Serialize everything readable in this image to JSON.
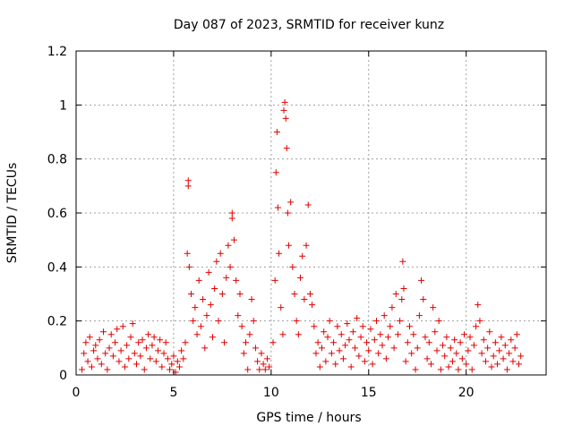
{
  "chart_data": {
    "type": "scatter",
    "title": "Day 087 of 2023, SRMTID for receiver kunz",
    "xlabel": "GPS time / hours",
    "ylabel": "SRMTID / TECUs",
    "xlim": [
      0,
      24.1
    ],
    "ylim": [
      0,
      1.2
    ],
    "xticks": [
      0,
      5,
      10,
      15,
      20
    ],
    "xtick_labels": [
      "0",
      "5",
      "10",
      "15",
      "20"
    ],
    "yticks": [
      0,
      0.2,
      0.4,
      0.6,
      0.8,
      1.0,
      1.2
    ],
    "ytick_labels": [
      "0",
      "0.2",
      "0.4",
      "0.6",
      "0.8",
      "1",
      "1.2"
    ],
    "grid": true,
    "marker": "+",
    "color": "#e00000",
    "series": [
      {
        "name": "SRMTID",
        "points": [
          [
            0.3,
            0.02
          ],
          [
            0.4,
            0.08
          ],
          [
            0.5,
            0.12
          ],
          [
            0.6,
            0.05
          ],
          [
            0.7,
            0.14
          ],
          [
            0.8,
            0.03
          ],
          [
            0.9,
            0.09
          ],
          [
            1.0,
            0.11
          ],
          [
            1.1,
            0.06
          ],
          [
            1.2,
            0.13
          ],
          [
            1.3,
            0.04
          ],
          [
            1.4,
            0.16
          ],
          [
            1.5,
            0.08
          ],
          [
            1.6,
            0.02
          ],
          [
            1.7,
            0.1
          ],
          [
            1.8,
            0.15
          ],
          [
            1.9,
            0.07
          ],
          [
            2.0,
            0.12
          ],
          [
            2.1,
            0.17
          ],
          [
            2.2,
            0.05
          ],
          [
            2.3,
            0.09
          ],
          [
            2.4,
            0.18
          ],
          [
            2.5,
            0.03
          ],
          [
            2.6,
            0.11
          ],
          [
            2.7,
            0.06
          ],
          [
            2.8,
            0.14
          ],
          [
            2.9,
            0.19
          ],
          [
            3.0,
            0.08
          ],
          [
            3.1,
            0.04
          ],
          [
            3.2,
            0.12
          ],
          [
            3.3,
            0.07
          ],
          [
            3.4,
            0.13
          ],
          [
            3.5,
            0.02
          ],
          [
            3.6,
            0.1
          ],
          [
            3.7,
            0.15
          ],
          [
            3.8,
            0.06
          ],
          [
            3.9,
            0.11
          ],
          [
            4.0,
            0.14
          ],
          [
            4.1,
            0.05
          ],
          [
            4.2,
            0.09
          ],
          [
            4.3,
            0.13
          ],
          [
            4.4,
            0.03
          ],
          [
            4.5,
            0.08
          ],
          [
            4.6,
            0.12
          ],
          [
            4.7,
            0.06
          ],
          [
            4.8,
            0.02
          ],
          [
            4.9,
            0.04
          ],
          [
            5.0,
            0.07
          ],
          [
            5.1,
            0.01
          ],
          [
            5.2,
            0.05
          ],
          [
            5.3,
            0.03
          ],
          [
            5.4,
            0.09
          ],
          [
            5.5,
            0.06
          ],
          [
            5.6,
            0.12
          ],
          [
            5.7,
            0.45
          ],
          [
            5.75,
            0.72
          ],
          [
            5.75,
            0.7
          ],
          [
            5.8,
            0.4
          ],
          [
            5.9,
            0.3
          ],
          [
            6.0,
            0.2
          ],
          [
            6.1,
            0.25
          ],
          [
            6.2,
            0.15
          ],
          [
            6.3,
            0.35
          ],
          [
            6.4,
            0.18
          ],
          [
            6.5,
            0.28
          ],
          [
            6.6,
            0.1
          ],
          [
            6.7,
            0.22
          ],
          [
            6.8,
            0.38
          ],
          [
            6.9,
            0.26
          ],
          [
            7.0,
            0.14
          ],
          [
            7.1,
            0.32
          ],
          [
            7.2,
            0.42
          ],
          [
            7.3,
            0.2
          ],
          [
            7.4,
            0.45
          ],
          [
            7.5,
            0.3
          ],
          [
            7.6,
            0.12
          ],
          [
            7.7,
            0.36
          ],
          [
            7.8,
            0.48
          ],
          [
            7.9,
            0.4
          ],
          [
            8.0,
            0.58
          ],
          [
            8.0,
            0.6
          ],
          [
            8.1,
            0.5
          ],
          [
            8.2,
            0.35
          ],
          [
            8.3,
            0.22
          ],
          [
            8.4,
            0.3
          ],
          [
            8.5,
            0.18
          ],
          [
            8.6,
            0.08
          ],
          [
            8.7,
            0.12
          ],
          [
            8.8,
            0.02
          ],
          [
            8.9,
            0.15
          ],
          [
            9.0,
            0.28
          ],
          [
            9.1,
            0.2
          ],
          [
            9.2,
            0.1
          ],
          [
            9.3,
            0.05
          ],
          [
            9.4,
            0.02
          ],
          [
            9.5,
            0.08
          ],
          [
            9.6,
            0.04
          ],
          [
            9.7,
            0.02
          ],
          [
            9.8,
            0.06
          ],
          [
            9.9,
            0.03
          ],
          [
            10.1,
            0.12
          ],
          [
            10.2,
            0.35
          ],
          [
            10.25,
            0.75
          ],
          [
            10.3,
            0.9
          ],
          [
            10.35,
            0.62
          ],
          [
            10.4,
            0.45
          ],
          [
            10.5,
            0.25
          ],
          [
            10.6,
            0.15
          ],
          [
            10.65,
            0.98
          ],
          [
            10.7,
            1.01
          ],
          [
            10.75,
            0.95
          ],
          [
            10.8,
            0.84
          ],
          [
            10.85,
            0.6
          ],
          [
            10.9,
            0.48
          ],
          [
            11.0,
            0.64
          ],
          [
            11.1,
            0.4
          ],
          [
            11.2,
            0.3
          ],
          [
            11.3,
            0.2
          ],
          [
            11.4,
            0.15
          ],
          [
            11.5,
            0.36
          ],
          [
            11.6,
            0.44
          ],
          [
            11.7,
            0.28
          ],
          [
            11.8,
            0.48
          ],
          [
            11.9,
            0.63
          ],
          [
            12.0,
            0.3
          ],
          [
            12.1,
            0.26
          ],
          [
            12.2,
            0.18
          ],
          [
            12.3,
            0.08
          ],
          [
            12.4,
            0.12
          ],
          [
            12.5,
            0.03
          ],
          [
            12.6,
            0.1
          ],
          [
            12.7,
            0.16
          ],
          [
            12.8,
            0.05
          ],
          [
            12.9,
            0.14
          ],
          [
            13.0,
            0.2
          ],
          [
            13.1,
            0.08
          ],
          [
            13.2,
            0.12
          ],
          [
            13.3,
            0.04
          ],
          [
            13.4,
            0.18
          ],
          [
            13.5,
            0.09
          ],
          [
            13.6,
            0.15
          ],
          [
            13.7,
            0.06
          ],
          [
            13.8,
            0.11
          ],
          [
            13.9,
            0.19
          ],
          [
            14.0,
            0.13
          ],
          [
            14.1,
            0.03
          ],
          [
            14.2,
            0.16
          ],
          [
            14.3,
            0.1
          ],
          [
            14.4,
            0.21
          ],
          [
            14.5,
            0.07
          ],
          [
            14.6,
            0.14
          ],
          [
            14.7,
            0.18
          ],
          [
            14.8,
            0.05
          ],
          [
            14.9,
            0.12
          ],
          [
            15.0,
            0.09
          ],
          [
            15.1,
            0.17
          ],
          [
            15.2,
            0.04
          ],
          [
            15.3,
            0.13
          ],
          [
            15.4,
            0.2
          ],
          [
            15.5,
            0.08
          ],
          [
            15.6,
            0.15
          ],
          [
            15.7,
            0.11
          ],
          [
            15.8,
            0.22
          ],
          [
            15.9,
            0.06
          ],
          [
            16.0,
            0.14
          ],
          [
            16.1,
            0.18
          ],
          [
            16.2,
            0.25
          ],
          [
            16.3,
            0.1
          ],
          [
            16.4,
            0.3
          ],
          [
            16.5,
            0.15
          ],
          [
            16.6,
            0.2
          ],
          [
            16.7,
            0.28
          ],
          [
            16.75,
            0.42
          ],
          [
            16.8,
            0.32
          ],
          [
            16.9,
            0.05
          ],
          [
            17.0,
            0.12
          ],
          [
            17.1,
            0.18
          ],
          [
            17.2,
            0.08
          ],
          [
            17.3,
            0.15
          ],
          [
            17.4,
            0.02
          ],
          [
            17.5,
            0.1
          ],
          [
            17.6,
            0.22
          ],
          [
            17.7,
            0.35
          ],
          [
            17.8,
            0.28
          ],
          [
            17.9,
            0.14
          ],
          [
            18.0,
            0.06
          ],
          [
            18.1,
            0.12
          ],
          [
            18.2,
            0.04
          ],
          [
            18.3,
            0.25
          ],
          [
            18.4,
            0.16
          ],
          [
            18.5,
            0.09
          ],
          [
            18.6,
            0.2
          ],
          [
            18.7,
            0.02
          ],
          [
            18.8,
            0.11
          ],
          [
            18.9,
            0.07
          ],
          [
            19.0,
            0.14
          ],
          [
            19.1,
            0.03
          ],
          [
            19.2,
            0.1
          ],
          [
            19.3,
            0.05
          ],
          [
            19.4,
            0.13
          ],
          [
            19.5,
            0.08
          ],
          [
            19.6,
            0.02
          ],
          [
            19.7,
            0.12
          ],
          [
            19.8,
            0.06
          ],
          [
            19.9,
            0.15
          ],
          [
            20.0,
            0.04
          ],
          [
            20.1,
            0.09
          ],
          [
            20.2,
            0.14
          ],
          [
            20.3,
            0.02
          ],
          [
            20.4,
            0.11
          ],
          [
            20.5,
            0.18
          ],
          [
            20.6,
            0.26
          ],
          [
            20.7,
            0.2
          ],
          [
            20.8,
            0.08
          ],
          [
            20.9,
            0.13
          ],
          [
            21.0,
            0.05
          ],
          [
            21.1,
            0.1
          ],
          [
            21.2,
            0.16
          ],
          [
            21.3,
            0.03
          ],
          [
            21.4,
            0.07
          ],
          [
            21.5,
            0.12
          ],
          [
            21.6,
            0.04
          ],
          [
            21.7,
            0.09
          ],
          [
            21.8,
            0.14
          ],
          [
            21.9,
            0.06
          ],
          [
            22.0,
            0.11
          ],
          [
            22.1,
            0.02
          ],
          [
            22.2,
            0.08
          ],
          [
            22.3,
            0.13
          ],
          [
            22.4,
            0.05
          ],
          [
            22.5,
            0.1
          ],
          [
            22.6,
            0.15
          ],
          [
            22.7,
            0.04
          ],
          [
            22.8,
            0.07
          ]
        ]
      }
    ]
  }
}
